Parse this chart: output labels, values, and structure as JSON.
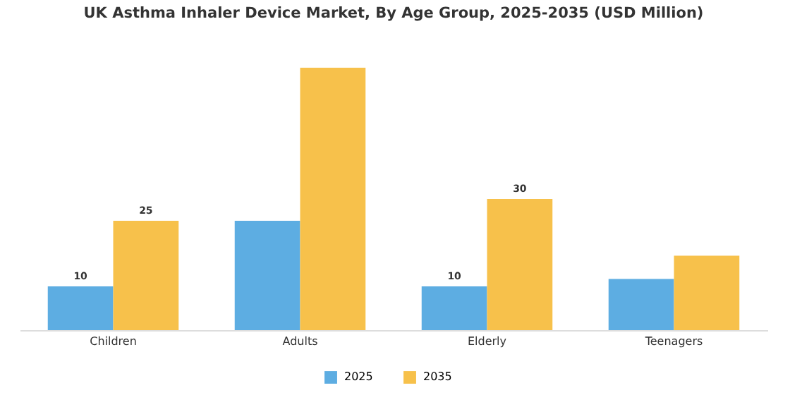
{
  "chart_data": {
    "type": "bar",
    "title": "UK Asthma Inhaler Device Market, By Age Group, 2025-2035 (USD Million)",
    "categories": [
      "Children",
      "Adults",
      "Elderly",
      "Teenagers"
    ],
    "series": [
      {
        "name": "2025",
        "color": "#5dade2",
        "values": [
          10,
          25,
          10,
          11.7
        ],
        "value_labels": [
          "10",
          null,
          "10",
          null
        ]
      },
      {
        "name": "2035",
        "color": "#f7c14b",
        "values": [
          25,
          60,
          30,
          17
        ],
        "value_labels": [
          "25",
          null,
          "30",
          null
        ]
      }
    ],
    "legend": "bottom"
  }
}
